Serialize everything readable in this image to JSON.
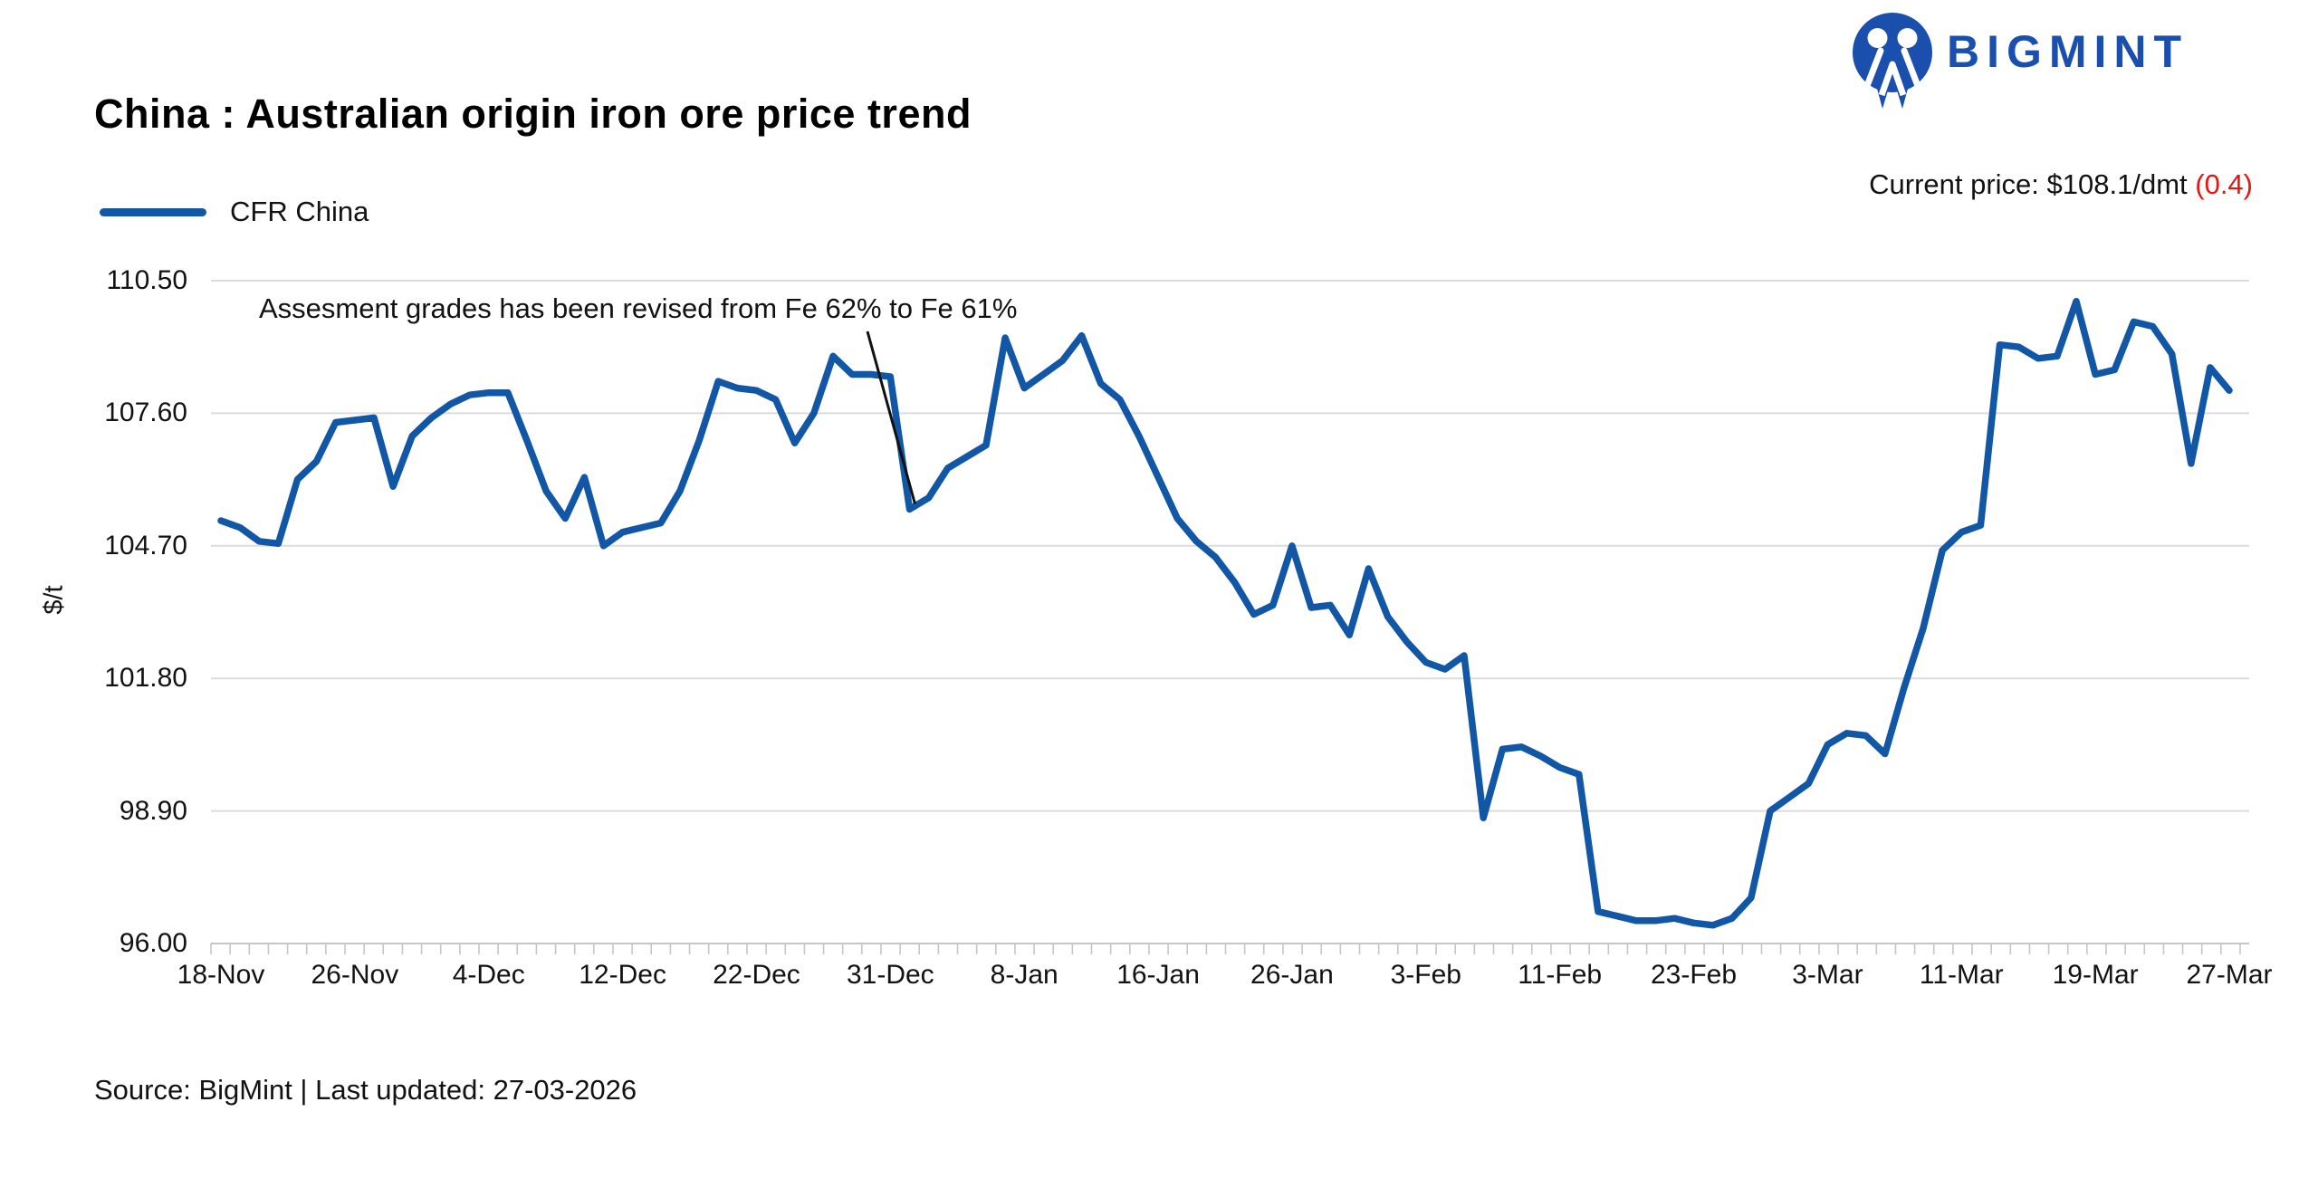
{
  "header": {
    "brand": "BIGMINT",
    "title": "China : Australian origin iron ore price trend",
    "current_price_text": "Current price: $108.1/dmt ",
    "current_price_change": "(0.4)"
  },
  "legend": {
    "label": "CFR China"
  },
  "annotation_text": "Assesment grades has been revised from Fe 62% to Fe 61%",
  "y_axis": {
    "title": "$/t",
    "tick_labels": [
      "110.50",
      "107.60",
      "104.70",
      "101.80",
      "98.90",
      "96.00"
    ]
  },
  "x_axis": {
    "labels": [
      "18-Nov",
      "26-Nov",
      "4-Dec",
      "12-Dec",
      "22-Dec",
      "31-Dec",
      "8-Jan",
      "16-Jan",
      "26-Jan",
      "3-Feb",
      "11-Feb",
      "23-Feb",
      "3-Mar",
      "11-Mar",
      "19-Mar",
      "27-Mar"
    ]
  },
  "footer": {
    "source": "Source: BigMint | Last updated: 27-03-2026"
  },
  "colors": {
    "line": "#1257a6",
    "logo_blue": "#1b4fad",
    "red": "#ec1313",
    "grid": "#dcdcdc",
    "axis": "#c6c6c6",
    "text": "#121212"
  },
  "chart_data": {
    "type": "line",
    "title": "China : Australian origin iron ore price trend",
    "xlabel": "",
    "ylabel": "$/t",
    "ylim": [
      96.0,
      110.5
    ],
    "y_ticks": [
      110.5,
      107.6,
      104.7,
      101.8,
      98.9,
      96.0
    ],
    "grid": "horizontal",
    "legend_position": "top-left",
    "x_tick_labels": [
      "18-Nov",
      "26-Nov",
      "4-Dec",
      "12-Dec",
      "22-Dec",
      "31-Dec",
      "8-Jan",
      "16-Jan",
      "26-Jan",
      "3-Feb",
      "11-Feb",
      "23-Feb",
      "3-Mar",
      "11-Mar",
      "19-Mar",
      "27-Mar"
    ],
    "label_every_n_points": 7,
    "n_points": 106,
    "series": [
      {
        "name": "CFR China",
        "color": "#1257a6",
        "values": [
          105.25,
          105.1,
          104.8,
          104.75,
          106.15,
          106.55,
          107.4,
          107.45,
          107.5,
          106.0,
          107.1,
          107.5,
          107.8,
          108.0,
          108.05,
          108.05,
          107.0,
          105.9,
          105.3,
          106.2,
          104.7,
          105.0,
          105.1,
          105.2,
          105.9,
          107.0,
          108.3,
          108.15,
          108.1,
          107.9,
          106.95,
          107.6,
          108.85,
          108.45,
          108.45,
          108.4,
          105.5,
          105.75,
          106.4,
          106.65,
          106.9,
          109.25,
          108.15,
          108.45,
          108.75,
          109.3,
          108.25,
          107.9,
          107.1,
          106.2,
          105.3,
          104.8,
          104.45,
          103.9,
          103.2,
          103.4,
          104.7,
          103.35,
          103.4,
          102.75,
          104.2,
          103.15,
          102.6,
          102.15,
          102.0,
          102.3,
          98.75,
          100.25,
          100.3,
          100.1,
          99.85,
          99.7,
          96.7,
          96.6,
          96.5,
          96.5,
          96.55,
          96.45,
          96.4,
          96.55,
          97.0,
          98.9,
          99.2,
          99.5,
          100.35,
          100.6,
          100.55,
          100.15,
          101.6,
          102.9,
          104.6,
          105.0,
          105.15,
          109.1,
          109.05,
          108.8,
          108.85,
          110.05,
          108.45,
          108.55,
          109.6,
          109.5,
          108.9,
          106.5,
          108.6,
          108.1
        ]
      }
    ],
    "annotation": {
      "text": "Assesment grades has been revised from Fe 62% to Fe 61%",
      "points_to_index": 36
    },
    "current_price": "$108.1/dmt",
    "current_price_change": "(0.4)",
    "source": "Source: BigMint | Last updated: 27-03-2026"
  }
}
